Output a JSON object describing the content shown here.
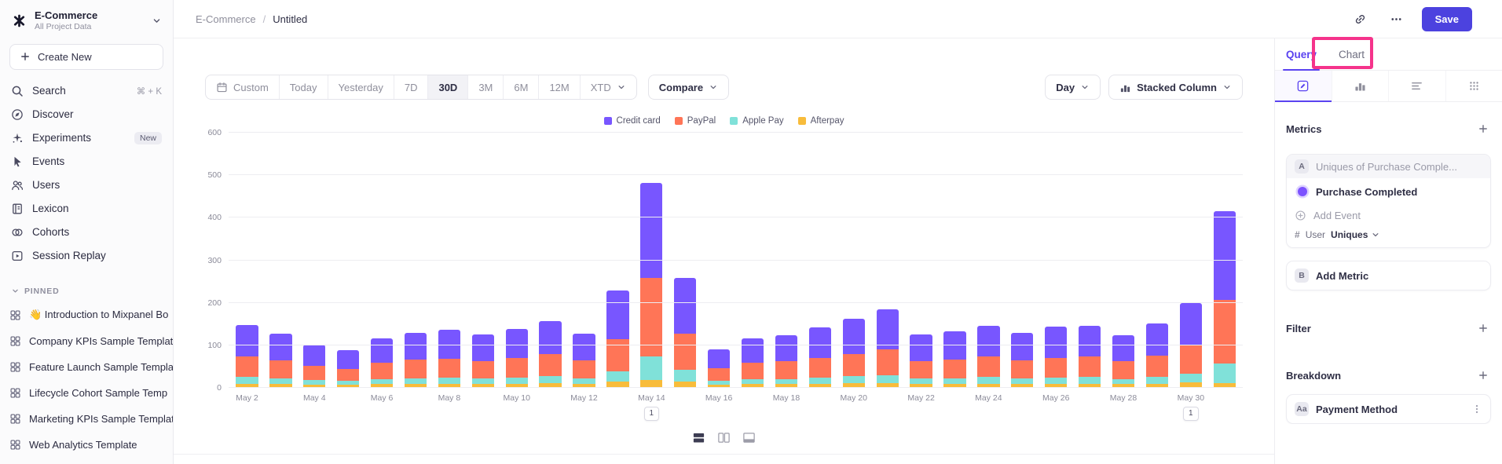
{
  "colors": {
    "accent_save": "#4c42df",
    "tab_active_purple": "#5a43f0",
    "annotation_pink": "#f5338b"
  },
  "sidebar": {
    "workspace_name": "E-Commerce",
    "workspace_subtitle": "All Project Data",
    "create_new_label": "Create New",
    "nav_items": [
      {
        "label": "Search",
        "icon": "search",
        "shortcut": "⌘ + K"
      },
      {
        "label": "Discover",
        "icon": "discover"
      },
      {
        "label": "Experiments",
        "icon": "experiments",
        "badge": "New"
      },
      {
        "label": "Events",
        "icon": "events"
      },
      {
        "label": "Users",
        "icon": "users"
      },
      {
        "label": "Lexicon",
        "icon": "lexicon"
      },
      {
        "label": "Cohorts",
        "icon": "cohorts"
      },
      {
        "label": "Session Replay",
        "icon": "session-replay"
      }
    ],
    "pinned_label": "PINNED",
    "pinned_items": [
      {
        "label": "👋 Introduction to Mixpanel Bo"
      },
      {
        "label": "Company KPIs Sample Templat"
      },
      {
        "label": "Feature Launch Sample Templa"
      },
      {
        "label": "Lifecycle Cohort Sample Temp"
      },
      {
        "label": "Marketing KPIs Sample Templat"
      },
      {
        "label": "Web Analytics Template"
      }
    ]
  },
  "header": {
    "breadcrumb_project": "E-Commerce",
    "breadcrumb_separator": "/",
    "breadcrumb_report": "Untitled",
    "save_label": "Save"
  },
  "toolbar": {
    "date_segments": [
      "Custom",
      "Today",
      "Yesterday",
      "7D",
      "30D",
      "3M",
      "6M",
      "12M",
      "XTD"
    ],
    "active_segment": "30D",
    "compare_label": "Compare",
    "granularity_label": "Day",
    "chart_type_label": "Stacked Column"
  },
  "chart_data": {
    "type": "bar",
    "stacked": true,
    "title": "",
    "xlabel": "",
    "ylabel": "",
    "ylim": [
      0,
      600
    ],
    "y_ticks": [
      0,
      100,
      200,
      300,
      400,
      500,
      600
    ],
    "x_label_every": 2,
    "grid": true,
    "legend_position": "top",
    "categories": [
      "May 2",
      "May 3",
      "May 4",
      "May 5",
      "May 6",
      "May 7",
      "May 8",
      "May 9",
      "May 10",
      "May 11",
      "May 12",
      "May 13",
      "May 14",
      "May 15",
      "May 16",
      "May 17",
      "May 18",
      "May 19",
      "May 20",
      "May 21",
      "May 22",
      "May 23",
      "May 24",
      "May 25",
      "May 26",
      "May 27",
      "May 28",
      "May 29",
      "May 30",
      "May 31"
    ],
    "series": [
      {
        "name": "Credit card",
        "color": "#7856FF",
        "values": [
          75,
          64,
          50,
          43,
          58,
          64,
          68,
          63,
          69,
          78,
          64,
          115,
          223,
          130,
          44,
          58,
          62,
          71,
          82,
          93,
          63,
          66,
          73,
          65,
          73,
          73,
          62,
          76,
          101,
          209
        ]
      },
      {
        "name": "PayPal",
        "color": "#FF7557",
        "values": [
          48,
          42,
          33,
          29,
          38,
          43,
          45,
          41,
          46,
          52,
          42,
          75,
          185,
          85,
          30,
          38,
          41,
          47,
          53,
          61,
          41,
          44,
          48,
          43,
          47,
          48,
          41,
          50,
          66,
          150
        ]
      },
      {
        "name": "Apple Pay",
        "color": "#80E1D9",
        "values": [
          15,
          13,
          10,
          9,
          12,
          13,
          14,
          13,
          14,
          16,
          13,
          25,
          55,
          28,
          9,
          12,
          12,
          14,
          16,
          18,
          13,
          13,
          15,
          13,
          14,
          15,
          12,
          15,
          20,
          45
        ]
      },
      {
        "name": "Afterpay",
        "color": "#F8BC3B",
        "values": [
          10,
          9,
          8,
          7,
          9,
          10,
          10,
          9,
          10,
          11,
          9,
          14,
          18,
          15,
          7,
          9,
          9,
          10,
          11,
          12,
          9,
          10,
          10,
          9,
          10,
          10,
          9,
          10,
          13,
          12
        ]
      }
    ],
    "annotations": [
      {
        "category": "May 14",
        "label": "1"
      },
      {
        "category": "May 30",
        "label": "1"
      }
    ]
  },
  "query_panel": {
    "tabs": [
      {
        "label": "Query",
        "active": true
      },
      {
        "label": "Chart",
        "active": false
      }
    ],
    "metrics_title": "Metrics",
    "metric": {
      "badge": "A",
      "summary": "Uniques of Purchase Comple...",
      "event_name": "Purchase Completed",
      "add_event_label": "Add Event",
      "aggregation_prefix": "#",
      "aggregation_entity": "User",
      "aggregation_type": "Uniques"
    },
    "add_metric": {
      "badge": "B",
      "label": "Add Metric"
    },
    "filter_title": "Filter",
    "breakdown_title": "Breakdown",
    "breakdown": {
      "badge": "Aa",
      "label": "Payment Method"
    }
  },
  "annotation_overlay": {
    "shape": "rectangle",
    "color": "#f5338b",
    "target_tab": "Chart"
  }
}
